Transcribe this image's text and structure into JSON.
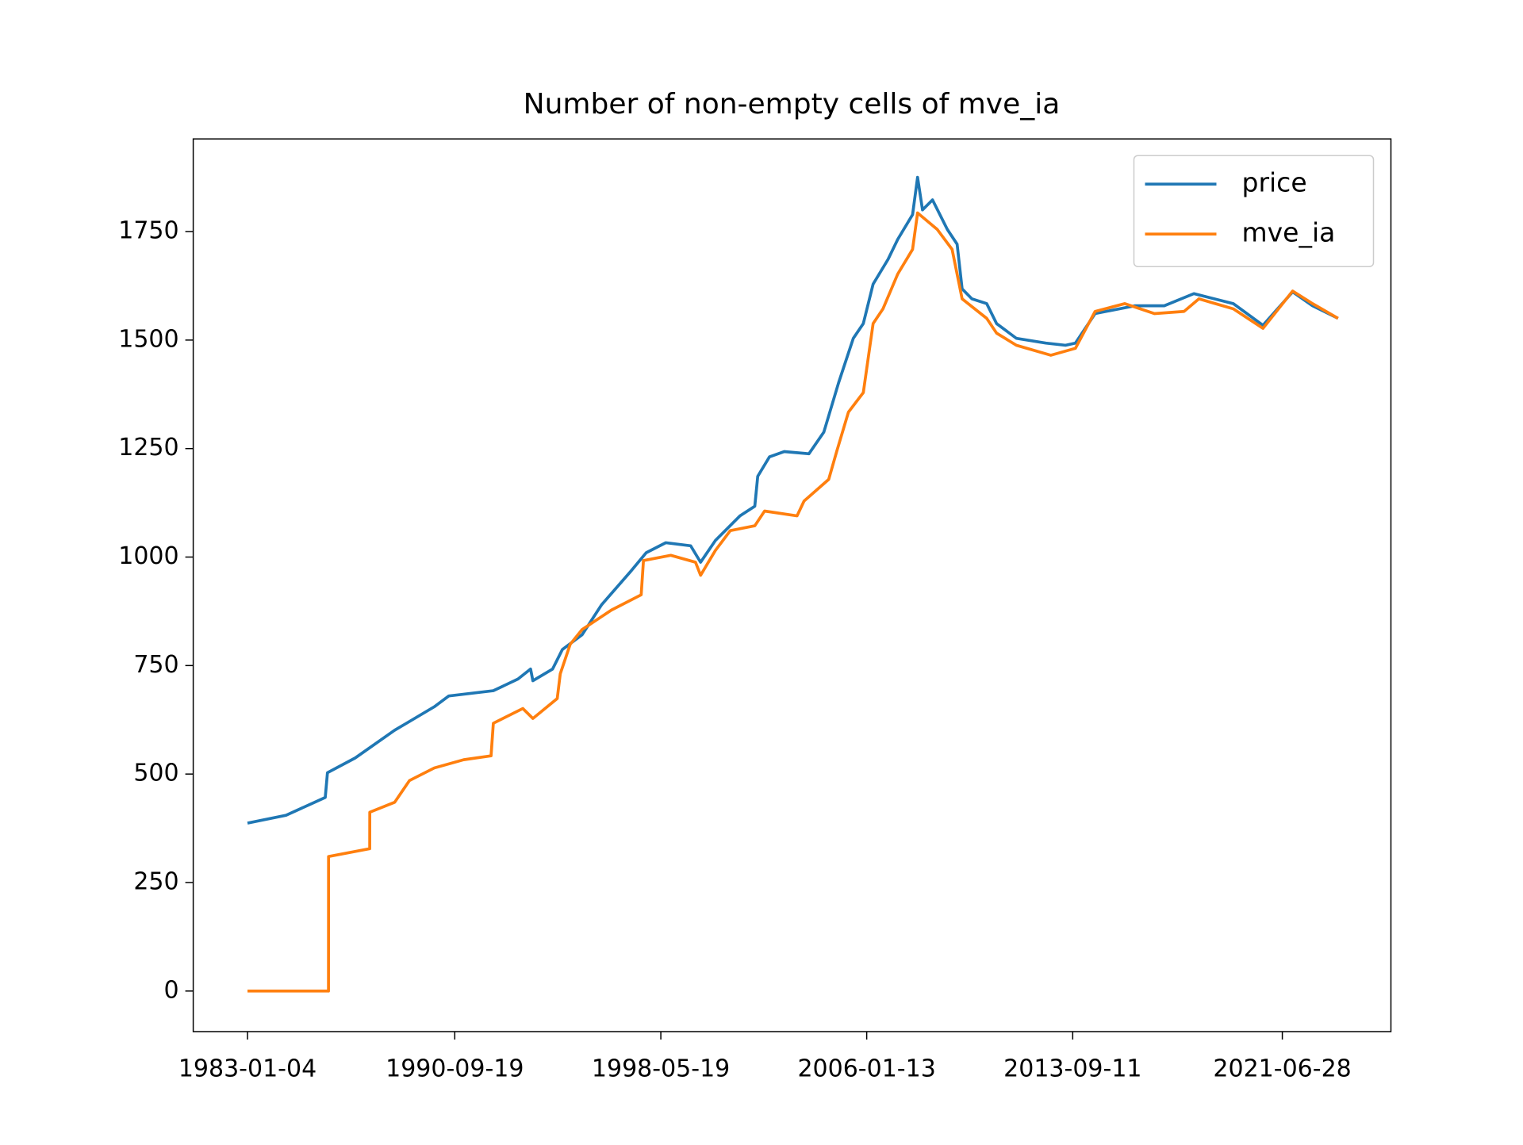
{
  "chart_data": {
    "type": "line",
    "title": "Number of non-empty cells of mve_ia",
    "xlim": [
      "1980-12-28",
      "2025-07-12"
    ],
    "xticks": [
      "1983-01-04",
      "1990-09-19",
      "1998-05-19",
      "2006-01-13",
      "2013-09-11",
      "2021-06-28"
    ],
    "ylim": [
      -93.5,
      1963.5
    ],
    "yticks": [
      0,
      250,
      500,
      750,
      1000,
      1250,
      1500,
      1750
    ],
    "legend": "upper right",
    "grid": false,
    "series": [
      {
        "name": "price",
        "color": "#1f77b4",
        "x": [
          "1983-01-04",
          "1984-06-10",
          "1985-11-25",
          "1985-12-25",
          "1987-01-05",
          "1988-06-25",
          "1989-12-15",
          "1990-07-01",
          "1992-02-25",
          "1993-01-25",
          "1993-07-15",
          "1993-08-15",
          "1994-05-10",
          "1994-09-20",
          "1995-06-15",
          "1996-03-05",
          "1997-04-15",
          "1997-11-01",
          "1998-07-25",
          "1999-06-28",
          "1999-11-10",
          "2000-05-28",
          "2001-04-28",
          "2001-11-15",
          "2001-12-25",
          "2002-06-03",
          "2002-12-20",
          "2003-11-20",
          "2004-06-10",
          "2004-12-28",
          "2005-07-15",
          "2005-11-28",
          "2006-04-10",
          "2006-10-30",
          "2007-03-10",
          "2007-09-28",
          "2007-12-05",
          "2008-02-10",
          "2008-06-25",
          "2009-01-12",
          "2009-05-25",
          "2009-08-01",
          "2009-12-12",
          "2010-07-01",
          "2010-11-12",
          "2011-08-08",
          "2012-09-12",
          "2013-06-05",
          "2013-10-18",
          "2014-07-12",
          "2016-01-01",
          "2017-02-05",
          "2018-03-15",
          "2019-09-01",
          "2020-10-08",
          "2021-11-15",
          "2022-08-12",
          "2023-07-25"
        ],
        "values": [
          387,
          405,
          446,
          503,
          537,
          601,
          655,
          680,
          692,
          719,
          742,
          715,
          742,
          787,
          821,
          890,
          969,
          1010,
          1033,
          1026,
          988,
          1038,
          1095,
          1117,
          1186,
          1231,
          1243,
          1238,
          1288,
          1402,
          1504,
          1538,
          1629,
          1686,
          1732,
          1789,
          1875,
          1800,
          1823,
          1755,
          1721,
          1618,
          1595,
          1584,
          1538,
          1504,
          1493,
          1488,
          1493,
          1561,
          1579,
          1579,
          1607,
          1584,
          1534,
          1611,
          1579,
          1550
        ]
      },
      {
        "name": "mve_ia",
        "color": "#ff7f0e",
        "x": [
          "1983-01-04",
          "1986-01-08",
          "1986-01-09",
          "1987-07-22",
          "1987-07-23",
          "1988-06-25",
          "1989-01-12",
          "1989-12-15",
          "1991-01-18",
          "1992-01-25",
          "1992-02-25",
          "1993-04-01",
          "1993-08-15",
          "1994-07-12",
          "1994-08-22",
          "1995-01-04",
          "1995-06-15",
          "1996-07-18",
          "1997-08-25",
          "1997-09-25",
          "1998-10-01",
          "1999-09-02",
          "1999-11-10",
          "2000-05-28",
          "2000-12-18",
          "2001-11-15",
          "2002-03-28",
          "2003-06-12",
          "2003-09-15",
          "2004-08-15",
          "2004-12-01",
          "2005-05-10",
          "2005-11-28",
          "2006-04-10",
          "2006-08-22",
          "2007-03-10",
          "2007-09-28",
          "2007-12-05",
          "2008-08-28",
          "2009-03-18",
          "2009-08-01",
          "2010-07-01",
          "2010-11-12",
          "2011-08-08",
          "2012-11-18",
          "2013-10-18",
          "2014-07-12",
          "2015-08-18",
          "2016-09-25",
          "2017-11-01",
          "2018-05-22",
          "2019-09-01",
          "2020-10-08",
          "2021-11-15",
          "2022-08-12",
          "2023-07-25"
        ],
        "values": [
          0,
          0,
          310,
          328,
          412,
          435,
          485,
          514,
          533,
          542,
          617,
          651,
          628,
          674,
          731,
          799,
          833,
          878,
          913,
          992,
          1004,
          988,
          958,
          1015,
          1061,
          1072,
          1106,
          1095,
          1129,
          1179,
          1243,
          1334,
          1379,
          1538,
          1572,
          1652,
          1709,
          1793,
          1755,
          1709,
          1595,
          1550,
          1516,
          1488,
          1465,
          1481,
          1566,
          1584,
          1561,
          1566,
          1595,
          1572,
          1527,
          1613,
          1584,
          1550
        ]
      }
    ]
  }
}
